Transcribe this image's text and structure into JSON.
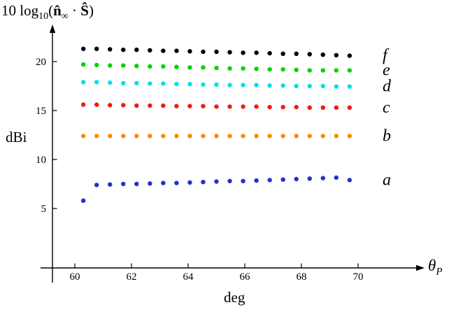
{
  "title": {
    "p1": "10 log",
    "p2": "10",
    "p3": "(",
    "nhat": "n̂",
    "inf": "∞",
    "dot": " · ",
    "shat": "Ŝ",
    "p4": ")"
  },
  "axes": {
    "ylabel": "dBi",
    "xlabel": "deg",
    "x_symbol": "θ",
    "x_symbol_sub": "P"
  },
  "chart_data": {
    "type": "scatter",
    "title": "10 log10(n̂∞ · Ŝ)",
    "xlabel": "deg (θP)",
    "ylabel": "dBi",
    "xlim": [
      59,
      71.5
    ],
    "ylim": [
      0,
      22.5
    ],
    "grid": false,
    "legend_position": "right-of-series",
    "x_ticks": [
      60,
      62,
      64,
      66,
      68,
      70
    ],
    "y_ticks": [
      5,
      10,
      15,
      20
    ],
    "x": [
      60.3,
      60.77,
      61.24,
      61.71,
      62.18,
      62.65,
      63.12,
      63.59,
      64.06,
      64.53,
      65.0,
      65.47,
      65.94,
      66.41,
      66.88,
      67.35,
      67.82,
      68.29,
      68.76,
      69.23,
      69.7
    ],
    "series": [
      {
        "name": "f",
        "color": "#000000",
        "values": [
          21.3,
          21.3,
          21.25,
          21.2,
          21.2,
          21.15,
          21.1,
          21.1,
          21.05,
          21.0,
          21.0,
          20.95,
          20.9,
          20.9,
          20.85,
          20.8,
          20.8,
          20.75,
          20.7,
          20.65,
          20.6
        ]
      },
      {
        "name": "e",
        "color": "#00d400",
        "values": [
          19.7,
          19.65,
          19.6,
          19.6,
          19.55,
          19.5,
          19.5,
          19.45,
          19.4,
          19.4,
          19.35,
          19.3,
          19.3,
          19.25,
          19.2,
          19.2,
          19.15,
          19.1,
          19.1,
          19.1,
          19.1
        ]
      },
      {
        "name": "d",
        "color": "#00e0e8",
        "values": [
          17.9,
          17.9,
          17.85,
          17.8,
          17.8,
          17.75,
          17.75,
          17.7,
          17.7,
          17.65,
          17.65,
          17.6,
          17.6,
          17.6,
          17.55,
          17.55,
          17.5,
          17.5,
          17.5,
          17.45,
          17.45
        ]
      },
      {
        "name": "c",
        "color": "#ee1c0e",
        "values": [
          15.6,
          15.6,
          15.55,
          15.55,
          15.5,
          15.5,
          15.5,
          15.45,
          15.45,
          15.45,
          15.4,
          15.4,
          15.4,
          15.4,
          15.35,
          15.35,
          15.35,
          15.3,
          15.3,
          15.3,
          15.3
        ]
      },
      {
        "name": "b",
        "color": "#ff8800",
        "values": [
          12.4,
          12.4,
          12.4,
          12.4,
          12.4,
          12.4,
          12.4,
          12.4,
          12.4,
          12.4,
          12.4,
          12.4,
          12.4,
          12.4,
          12.4,
          12.4,
          12.4,
          12.4,
          12.4,
          12.4,
          12.4
        ]
      },
      {
        "name": "a",
        "color": "#2430cc",
        "values": [
          5.8,
          7.4,
          7.45,
          7.5,
          7.5,
          7.55,
          7.6,
          7.6,
          7.65,
          7.7,
          7.75,
          7.8,
          7.8,
          7.85,
          7.9,
          7.95,
          8.0,
          8.05,
          8.1,
          8.15,
          7.9
        ]
      }
    ]
  }
}
